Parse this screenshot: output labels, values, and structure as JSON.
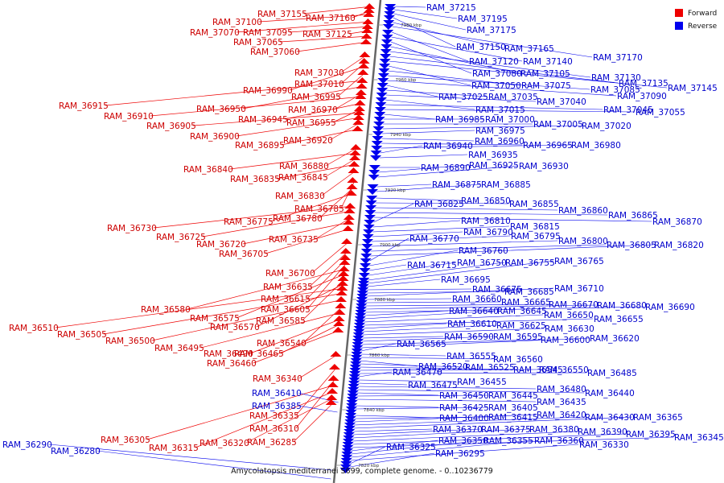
{
  "caption": "Amycolatopsis mediterranei S699, complete genome. - 0..10236779",
  "legend": {
    "items": [
      {
        "label": "Forward",
        "color": "#ee0000"
      },
      {
        "label": "Reverse",
        "color": "#0000ee"
      }
    ]
  },
  "colors": {
    "forward": "#ee0000",
    "reverse": "#0000ee",
    "axis": "#666666"
  },
  "ticks": [
    "7980 kbp",
    "7960 kbp",
    "7940 kbp",
    "7920 kbp",
    "7900 kbp",
    "7880 kbp",
    "7860 kbp",
    "7840 kbp",
    "7820 kbp"
  ],
  "forward_genes": [
    "RAM_37155",
    "RAM_37160",
    "RAM_37100",
    "RAM_37070",
    "RAM_37095",
    "RAM_37125",
    "RAM_37065",
    "RAM_37060",
    "RAM_37030",
    "RAM_37010",
    "RAM_36990",
    "RAM_36995",
    "RAM_36915",
    "RAM_36950",
    "RAM_36970",
    "RAM_36910",
    "RAM_36945",
    "RAM_36955",
    "RAM_36905",
    "RAM_36900",
    "RAM_36920",
    "RAM_36895",
    "RAM_36880",
    "RAM_36840",
    "RAM_36845",
    "RAM_36835",
    "RAM_36830",
    "RAM_36785",
    "RAM_36780",
    "RAM_36775",
    "RAM_36730",
    "RAM_36725",
    "RAM_36735",
    "RAM_36720",
    "RAM_36705",
    "RAM_36700",
    "RAM_36635",
    "RAM_36615",
    "RAM_36605",
    "RAM_36580",
    "RAM_36575",
    "RAM_36585",
    "RAM_36570",
    "RAM_36510",
    "RAM_36505",
    "RAM_36500",
    "RAM_36540",
    "RAM_36495",
    "RAM_36490",
    "RAM_36465",
    "RAM_36460",
    "RAM_36340",
    "RAM_36335",
    "RAM_36310",
    "RAM_36305",
    "RAM_36315",
    "RAM_36320",
    "RAM_36285"
  ],
  "reverse_genes": [
    "RAM_37215",
    "RAM_37195",
    "RAM_37175",
    "RAM_37150",
    "RAM_37165",
    "RAM_37170",
    "RAM_37120",
    "RAM_37140",
    "RAM_37080",
    "RAM_37105",
    "RAM_37130",
    "RAM_37135",
    "RAM_37145",
    "RAM_37050",
    "RAM_37075",
    "RAM_37085",
    "RAM_37090",
    "RAM_37025",
    "RAM_37035",
    "RAM_37040",
    "RAM_37015",
    "RAM_37045",
    "RAM_37055",
    "RAM_36985",
    "RAM_37000",
    "RAM_37005",
    "RAM_37020",
    "RAM_36975",
    "RAM_36960",
    "RAM_36965",
    "RAM_36980",
    "RAM_36940",
    "RAM_36935",
    "RAM_36890",
    "RAM_36925",
    "RAM_36930",
    "RAM_36875",
    "RAM_36885",
    "RAM_36850",
    "RAM_36855",
    "RAM_36860",
    "RAM_36865",
    "RAM_36870",
    "RAM_36825",
    "RAM_36810",
    "RAM_36815",
    "RAM_36790",
    "RAM_36795",
    "RAM_36800",
    "RAM_36805",
    "RAM_36820",
    "RAM_36770",
    "RAM_36760",
    "RAM_36715",
    "RAM_36750",
    "RAM_36755",
    "RAM_36765",
    "RAM_36695",
    "RAM_36675",
    "RAM_36685",
    "RAM_36710",
    "RAM_36660",
    "RAM_36665",
    "RAM_36670",
    "RAM_36680",
    "RAM_36690",
    "RAM_36640",
    "RAM_36645",
    "RAM_36650",
    "RAM_36655",
    "RAM_36610",
    "RAM_36625",
    "RAM_36630",
    "RAM_36590",
    "RAM_36595",
    "RAM_36600",
    "RAM_36620",
    "RAM_36565",
    "RAM_36555",
    "RAM_36560",
    "RAM_36520",
    "RAM_36525",
    "RAM_36545",
    "RAM_36550",
    "RAM_36485",
    "RAM_36470",
    "RAM_36455",
    "RAM_36475",
    "RAM_36480",
    "RAM_36440",
    "RAM_36450",
    "RAM_36445",
    "RAM_36435",
    "RAM_36410",
    "RAM_36425",
    "RAM_36405",
    "RAM_36385",
    "RAM_36400",
    "RAM_36415",
    "RAM_36420",
    "RAM_36430",
    "RAM_36365",
    "RAM_36370",
    "RAM_36375",
    "RAM_36380",
    "RAM_36390",
    "RAM_36395",
    "RAM_36345",
    "RAM_36350",
    "RAM_36355",
    "RAM_36360",
    "RAM_36330",
    "RAM_36325",
    "RAM_36295",
    "RAM_36290",
    "RAM_36280"
  ]
}
